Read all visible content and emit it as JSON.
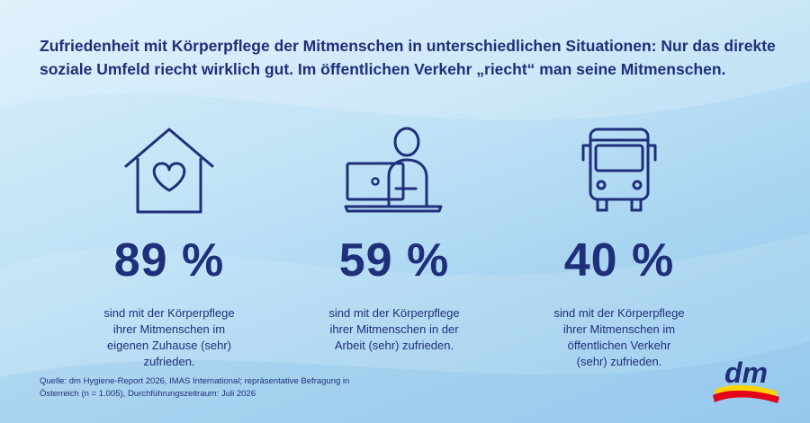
{
  "headline": "Zufriedenheit mit Körperpflege der Mitmenschen in unterschiedlichen Situationen: Nur das direkte soziale Umfeld riecht wirklich gut. Im öffentlichen Verkehr „riecht“ man seine Mitmenschen.",
  "stats": [
    {
      "value": "89 %",
      "description": "sind mit der Körperpflege ihrer Mitmenschen im eigenen Zuhause (sehr) zufrieden.",
      "icon": "house-heart-icon"
    },
    {
      "value": "59 %",
      "description": "sind mit der Körperpflege ihrer Mitmenschen in der Arbeit (sehr) zufrieden.",
      "icon": "person-laptop-icon"
    },
    {
      "value": "40 %",
      "description": "sind mit der Körperpflege ihrer Mitmenschen im öffentlichen Verkehr (sehr) zufrieden.",
      "icon": "bus-icon"
    }
  ],
  "source": "Quelle: dm Hygiene-Report 2026, IMAS International; repräsentative Befragung in Österreich (n = 1.005), Durchführungszeitraum: Juli 2026",
  "logo": {
    "text": "dm"
  },
  "colors": {
    "text": "#1f2f7a",
    "logo_red": "#e2001a",
    "logo_yellow": "#ffd400"
  }
}
